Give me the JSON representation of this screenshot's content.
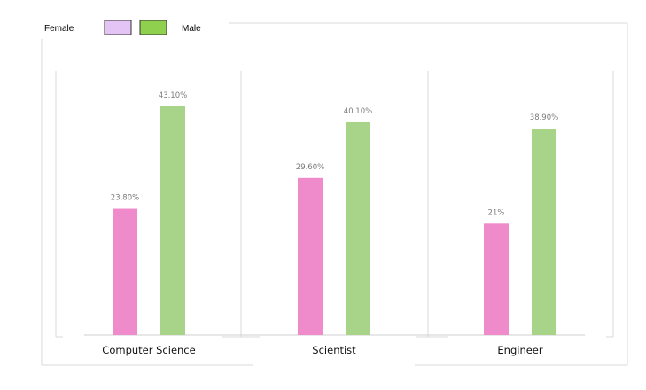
{
  "chart_data": {
    "type": "bar",
    "categories": [
      "Computer Science",
      "Scientist",
      "Engineer"
    ],
    "series": [
      {
        "name": "Female",
        "values": [
          23.8,
          29.6,
          21
        ],
        "labels": [
          "23.80%",
          "29.60%",
          "21%"
        ]
      },
      {
        "name": "Male",
        "values": [
          43.1,
          40.1,
          38.9
        ],
        "labels": [
          "43.10%",
          "40.10%",
          "38.90%"
        ]
      }
    ],
    "ylim": [
      0,
      50
    ],
    "grid": false,
    "legend_position": "top-left"
  },
  "legend": {
    "female_label": "Female",
    "male_label": "Male",
    "female_swatch_color": "#e3c4f5",
    "male_swatch_color": "#8fd14f"
  },
  "colors": {
    "female_bar": "#f08bcb",
    "male_bar": "#a8d48a",
    "frame": "#d9d9d9"
  }
}
